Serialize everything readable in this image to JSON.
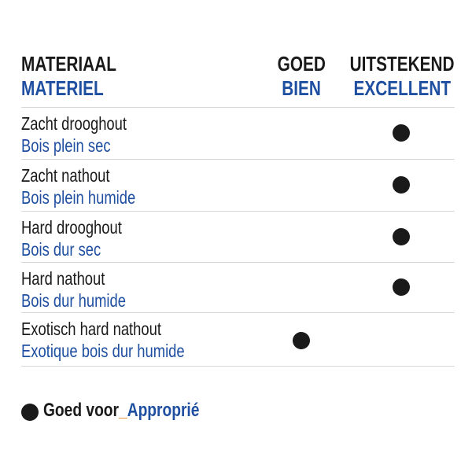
{
  "header": {
    "material_nl": "MATERIAAL",
    "material_fr": "MATERIEL",
    "good_nl": "GOED",
    "good_fr": "BIEN",
    "excellent_nl": "UITSTEKEND",
    "excellent_fr": "EXCELLENT"
  },
  "rows": [
    {
      "nl": "Zacht drooghout",
      "fr": "Bois plein sec",
      "rating": "excellent"
    },
    {
      "nl": "Zacht nathout",
      "fr": "Bois plein humide",
      "rating": "excellent"
    },
    {
      "nl": "Hard drooghout",
      "fr": "Bois dur sec",
      "rating": "excellent"
    },
    {
      "nl": "Hard nathout",
      "fr": "Bois dur humide",
      "rating": "excellent"
    },
    {
      "nl": "Exotisch hard nathout",
      "fr": "Exotique bois dur humide",
      "rating": "good"
    }
  ],
  "legend": {
    "nl": "Goed voor",
    "sep": "_",
    "fr": "Approprié",
    "icon": "filled-circle-icon"
  },
  "colors": {
    "text": "#1a1a1a",
    "french": "#1f4fa0",
    "separator": "#e8892a"
  }
}
